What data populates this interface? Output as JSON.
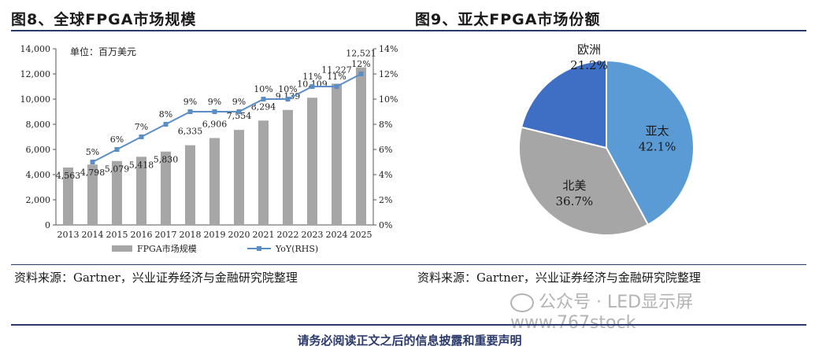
{
  "left_figure": {
    "title": "图8、全球FPGA市场规模",
    "source": "资料来源：Gartner，兴业证券经济与金融研究院整理"
  },
  "right_figure": {
    "title": "图9、亚太FPGA市场份额",
    "source": "资料来源：Gartner，兴业证券经济与金融研究院整理"
  },
  "footer": "请务必阅读正文之后的信息披露和重要声明",
  "watermark": "公众号 · LED显示屏  www.767stock",
  "colors": {
    "bar": "#a6a6a6",
    "line": "#5b8ec7",
    "pie_apac": "#5b9bd5",
    "pie_na": "#a6a6a6",
    "pie_eu": "#3f6fc4",
    "rule": "#2b3a6b"
  },
  "chart_data": [
    {
      "type": "bar",
      "unit_label": "单位：百万美元",
      "categories": [
        "2013",
        "2014",
        "2015",
        "2016",
        "2017",
        "2018",
        "2019",
        "2020",
        "2021",
        "2022",
        "2023",
        "2024",
        "2025"
      ],
      "series": [
        {
          "name": "FPGA市场规模",
          "type": "bar",
          "axis": "left",
          "values": [
            4563,
            4798,
            5079,
            5418,
            5830,
            6335,
            6906,
            7554,
            8294,
            9139,
            10109,
            11227,
            12521
          ],
          "labels": [
            "4,563",
            "4,798",
            "5,079",
            "5,418",
            "5,830",
            "6,335",
            "6,906",
            "7,554",
            "8,294",
            "9,139",
            "10,109",
            "11,227",
            "12,521"
          ]
        },
        {
          "name": "YoY(RHS)",
          "type": "line",
          "axis": "right",
          "values": [
            null,
            5,
            6,
            7,
            8,
            9,
            9,
            9,
            10,
            10,
            11,
            11,
            12
          ],
          "labels": [
            "",
            "5%",
            "6%",
            "7%",
            "8%",
            "9%",
            "9%",
            "9%",
            "10%",
            "10%",
            "11%",
            "11%",
            "12%"
          ]
        }
      ],
      "y_left": {
        "ylim": [
          0,
          14000
        ],
        "ticks": [
          "0",
          "2,000",
          "4,000",
          "6,000",
          "8,000",
          "10,000",
          "12,000",
          "14,000"
        ]
      },
      "y_right": {
        "ylim": [
          0,
          14
        ],
        "ticks": [
          "0%",
          "2%",
          "4%",
          "6%",
          "8%",
          "10%",
          "12%",
          "14%"
        ]
      },
      "legend_position": "bottom",
      "grid": false
    },
    {
      "type": "pie",
      "slices": [
        {
          "name": "亚太",
          "value": 42.1,
          "label": "42.1%"
        },
        {
          "name": "北美",
          "value": 36.7,
          "label": "36.7%"
        },
        {
          "name": "欧洲",
          "value": 21.2,
          "label": "21.2%"
        }
      ]
    }
  ]
}
